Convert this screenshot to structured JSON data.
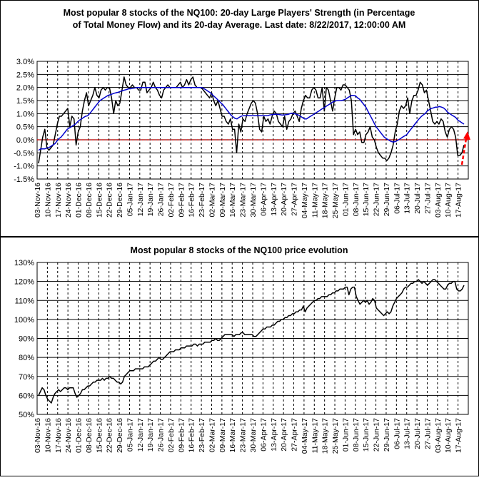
{
  "chart_data": [
    {
      "type": "line",
      "title_line1": "Most popular 8 stocks of the NQ100: 20-day Large Players' Strength (in Percentage",
      "title_line2": "of Total Money Flow) and its 20-day Average. Last date: 8/22/2017, 12:00:00 AM",
      "ylim": [
        -1.5,
        3.0
      ],
      "yticks": [
        "-1.5%",
        "-1.0%",
        "-0.5%",
        "0.0%",
        "0.5%",
        "1.0%",
        "1.5%",
        "2.0%",
        "2.5%",
        "3.0%"
      ],
      "xticks": [
        "03-Nov-16",
        "10-Nov-16",
        "17-Nov-16",
        "24-Nov-16",
        "01-Dec-16",
        "08-Dec-16",
        "15-Dec-16",
        "22-Dec-16",
        "29-Dec-16",
        "05-Jan-17",
        "12-Jan-17",
        "19-Jan-17",
        "26-Jan-17",
        "02-Feb-17",
        "09-Feb-17",
        "16-Feb-17",
        "23-Feb-17",
        "02-Mar-17",
        "09-Mar-17",
        "16-Mar-17",
        "23-Mar-17",
        "30-Mar-17",
        "06-Apr-17",
        "13-Apr-17",
        "20-Apr-17",
        "27-Apr-17",
        "04-May-17",
        "11-May-17",
        "18-May-17",
        "25-May-17",
        "01-Jun-17",
        "08-Jun-17",
        "15-Jun-17",
        "22-Jun-17",
        "29-Jun-17",
        "06-Jul-17",
        "13-Jul-17",
        "20-Jul-17",
        "27-Jul-17",
        "03-Aug-17",
        "10-Aug-17",
        "17-Aug-17"
      ],
      "grid": true,
      "reference_line": {
        "y": 0.0,
        "color": "#ff0000"
      },
      "series": [
        {
          "color": "#000000",
          "values": [
            -0.9,
            -0.4,
            0.1,
            0.4,
            -0.3,
            -0.4,
            -0.3,
            -0.2,
            0.2,
            0.6,
            0.9,
            0.9,
            1.0,
            1.1,
            1.2,
            0.5,
            0.9,
            0.8,
            -0.2,
            0.3,
            0.5,
            1.1,
            1.5,
            1.8,
            1.3,
            1.5,
            1.7,
            2.0,
            1.7,
            1.6,
            1.9,
            2.0,
            1.9,
            2.0,
            2.0,
            1.6,
            1.0,
            1.5,
            1.3,
            1.4,
            1.9,
            2.4,
            2.1,
            2.0,
            2.0,
            2.1,
            2.0,
            2.0,
            1.9,
            1.9,
            2.2,
            2.2,
            1.8,
            1.9,
            2.0,
            2.2,
            2.0,
            1.9,
            1.7,
            1.6,
            1.9,
            2.0,
            2.1,
            2.0,
            2.0,
            2.0,
            2.0,
            2.1,
            2.2,
            2.0,
            2.1,
            2.3,
            2.1,
            2.3,
            2.4,
            2.1,
            2.0,
            2.0,
            2.0,
            1.9,
            1.8,
            1.7,
            1.6,
            1.8,
            1.5,
            1.3,
            1.5,
            1.2,
            0.9,
            0.9,
            0.7,
            0.6,
            0.8,
            0.4,
            0.4,
            -0.5,
            0.6,
            0.3,
            0.8,
            0.7,
            1.0,
            1.2,
            1.4,
            1.5,
            1.4,
            1.0,
            0.4,
            0.3,
            0.9,
            0.7,
            0.8,
            0.6,
            0.9,
            1.1,
            1.0,
            0.7,
            0.6,
            0.5,
            0.9,
            0.4,
            0.7,
            0.8,
            1.0,
            1.1,
            0.9,
            0.7,
            1.2,
            1.5,
            1.7,
            1.6,
            1.6,
            1.9,
            2.0,
            1.9,
            1.6,
            1.6,
            2.0,
            1.1,
            2.0,
            1.9,
            1.5,
            1.1,
            1.6,
            2.0,
            2.0,
            1.9,
            2.1,
            2.1,
            2.0,
            1.9,
            1.5,
            0.2,
            0.4,
            0.2,
            0.3,
            -0.1,
            -0.1,
            0.2,
            0.3,
            0.5,
            0.1,
            0.0,
            -0.3,
            -0.5,
            -0.6,
            -0.7,
            -0.7,
            -0.8,
            -0.7,
            -0.5,
            -0.2,
            0.3,
            0.6,
            1.1,
            1.3,
            1.2,
            1.3,
            1.6,
            1.0,
            1.5,
            1.7,
            1.7,
            1.9,
            2.2,
            2.1,
            1.8,
            1.9,
            1.5,
            1.1,
            0.7,
            0.6,
            0.7,
            0.6,
            0.8,
            0.7,
            0.3,
            0.1,
            0.4,
            0.5,
            0.4,
            0.1,
            -0.6,
            -0.6,
            -0.5,
            -0.2
          ]
        },
        {
          "color": "#0000cc",
          "values": [
            -0.4,
            -0.35,
            -0.35,
            -0.35,
            -0.32,
            -0.3,
            -0.25,
            -0.2,
            -0.15,
            -0.05,
            0.05,
            0.1,
            0.2,
            0.3,
            0.4,
            0.45,
            0.5,
            0.55,
            0.6,
            0.68,
            0.75,
            0.8,
            0.85,
            0.9,
            0.92,
            1.0,
            1.1,
            1.2,
            1.3,
            1.4,
            1.5,
            1.55,
            1.6,
            1.65,
            1.7,
            1.72,
            1.75,
            1.78,
            1.8,
            1.82,
            1.85,
            1.88,
            1.9,
            1.92,
            1.95,
            1.95,
            1.97,
            1.98,
            2.0,
            2.0,
            2.0,
            2.0,
            2.0,
            2.0,
            2.0,
            2.0,
            2.0,
            2.0,
            2.0,
            2.0,
            2.0,
            2.0,
            2.0,
            2.0,
            2.0,
            2.0,
            2.0,
            2.0,
            2.0,
            2.0,
            2.0,
            2.0,
            2.0,
            2.0,
            2.0,
            2.0,
            2.0,
            2.0,
            2.0,
            2.0,
            2.0,
            1.95,
            1.9,
            1.85,
            1.8,
            1.72,
            1.65,
            1.58,
            1.5,
            1.42,
            1.35,
            1.25,
            1.15,
            1.05,
            0.95,
            0.88,
            0.82,
            0.8,
            0.85,
            0.9,
            0.92,
            0.92,
            0.92,
            0.92,
            0.92,
            0.92,
            0.92,
            0.92,
            0.92,
            0.92,
            0.92,
            0.92,
            0.92,
            0.95,
            0.96,
            0.97,
            0.98,
            0.97,
            0.96,
            0.95,
            0.95,
            0.96,
            0.97,
            1.0,
            1.02,
            1.0,
            0.98,
            0.95,
            0.9,
            0.85,
            0.8,
            0.8,
            0.85,
            0.9,
            0.95,
            1.0,
            1.05,
            1.1,
            1.15,
            1.2,
            1.25,
            1.3,
            1.35,
            1.4,
            1.45,
            1.48,
            1.5,
            1.5,
            1.5,
            1.52,
            1.55,
            1.6,
            1.65,
            1.7,
            1.7,
            1.68,
            1.6,
            1.55,
            1.45,
            1.35,
            1.25,
            1.1,
            0.95,
            0.8,
            0.65,
            0.5,
            0.4,
            0.3,
            0.2,
            0.1,
            0.05,
            0.0,
            -0.05,
            -0.08,
            -0.08,
            -0.05,
            0.0,
            0.05,
            0.1,
            0.15,
            0.2,
            0.3,
            0.4,
            0.5,
            0.6,
            0.7,
            0.8,
            0.88,
            0.95,
            1.0,
            1.1,
            1.15,
            1.2,
            1.22,
            1.25,
            1.25,
            1.27,
            1.25,
            1.22,
            1.15,
            1.05,
            1.0,
            0.95,
            0.9,
            0.85,
            0.75,
            0.7,
            0.65,
            0.6
          ]
        }
      ],
      "arrow_color": "#ff0000"
    },
    {
      "type": "line",
      "title": "Most popular 8 stocks of the NQ100 price evolution",
      "ylim": [
        50,
        130
      ],
      "yticks": [
        "50%",
        "60%",
        "70%",
        "80%",
        "90%",
        "100%",
        "110%",
        "120%",
        "130%"
      ],
      "xticks": [
        "03-Nov-16",
        "10-Nov-16",
        "17-Nov-16",
        "24-Nov-16",
        "01-Dec-16",
        "08-Dec-16",
        "15-Dec-16",
        "22-Dec-16",
        "29-Dec-16",
        "05-Jan-17",
        "12-Jan-17",
        "19-Jan-17",
        "26-Jan-17",
        "02-Feb-17",
        "09-Feb-17",
        "16-Feb-17",
        "23-Feb-17",
        "02-Mar-17",
        "09-Mar-17",
        "16-Mar-17",
        "23-Mar-17",
        "30-Mar-17",
        "06-Apr-17",
        "13-Apr-17",
        "20-Apr-17",
        "27-Apr-17",
        "04-May-17",
        "11-May-17",
        "18-May-17",
        "25-May-17",
        "01-Jun-17",
        "08-Jun-17",
        "15-Jun-17",
        "22-Jun-17",
        "29-Jun-17",
        "06-Jul-17",
        "13-Jul-17",
        "20-Jul-17",
        "27-Jul-17",
        "03-Aug-17",
        "10-Aug-17",
        "17-Aug-17"
      ],
      "grid": true,
      "series": [
        {
          "color": "#000000",
          "values": [
            60,
            62,
            64,
            63,
            60,
            58,
            57,
            56,
            59,
            61,
            62,
            63,
            62,
            63,
            64,
            64,
            63,
            64,
            64,
            64,
            61,
            59,
            60,
            61,
            63,
            63,
            64,
            65,
            65,
            66,
            67,
            67,
            68,
            68,
            68,
            69,
            68,
            69,
            69,
            70,
            69,
            69,
            68,
            67,
            67,
            66,
            67,
            70,
            71,
            72,
            73,
            73,
            73,
            74,
            74,
            74,
            74,
            74,
            75,
            75,
            75,
            76,
            77,
            78,
            78,
            79,
            80,
            79,
            79,
            80,
            81,
            82,
            83,
            83,
            83,
            84,
            84,
            84,
            85,
            85,
            85,
            86,
            86,
            86,
            86,
            87,
            87,
            86,
            87,
            87,
            87,
            88,
            88,
            88,
            88,
            89,
            89,
            90,
            89,
            89,
            90,
            91,
            92,
            92,
            92,
            92,
            92,
            91,
            92,
            92,
            92,
            93,
            93,
            92,
            92,
            92,
            92,
            92,
            91,
            91,
            92,
            93,
            94,
            95,
            95,
            96,
            96,
            96,
            97,
            97,
            98,
            99,
            99,
            100,
            100,
            101,
            101,
            102,
            102,
            103,
            103,
            104,
            104,
            105,
            105,
            107,
            104,
            106,
            107,
            108,
            109,
            110,
            110,
            111,
            111,
            112,
            112,
            112,
            112,
            113,
            113,
            114,
            114,
            115,
            115,
            116,
            116,
            116,
            117,
            117,
            113,
            116,
            117,
            117,
            112,
            110,
            108,
            109,
            110,
            109,
            110,
            108,
            109,
            111,
            110,
            106,
            105,
            104,
            103,
            102,
            103,
            104,
            103,
            104,
            107,
            109,
            111,
            112,
            113,
            114,
            116,
            117,
            117,
            118,
            119,
            119,
            120,
            120,
            121,
            120,
            119,
            120,
            119,
            118,
            119,
            120,
            121,
            121,
            120,
            119,
            118,
            117,
            116,
            116,
            118,
            119,
            119,
            120,
            120,
            116,
            115,
            115,
            116,
            118
          ]
        }
      ]
    }
  ]
}
